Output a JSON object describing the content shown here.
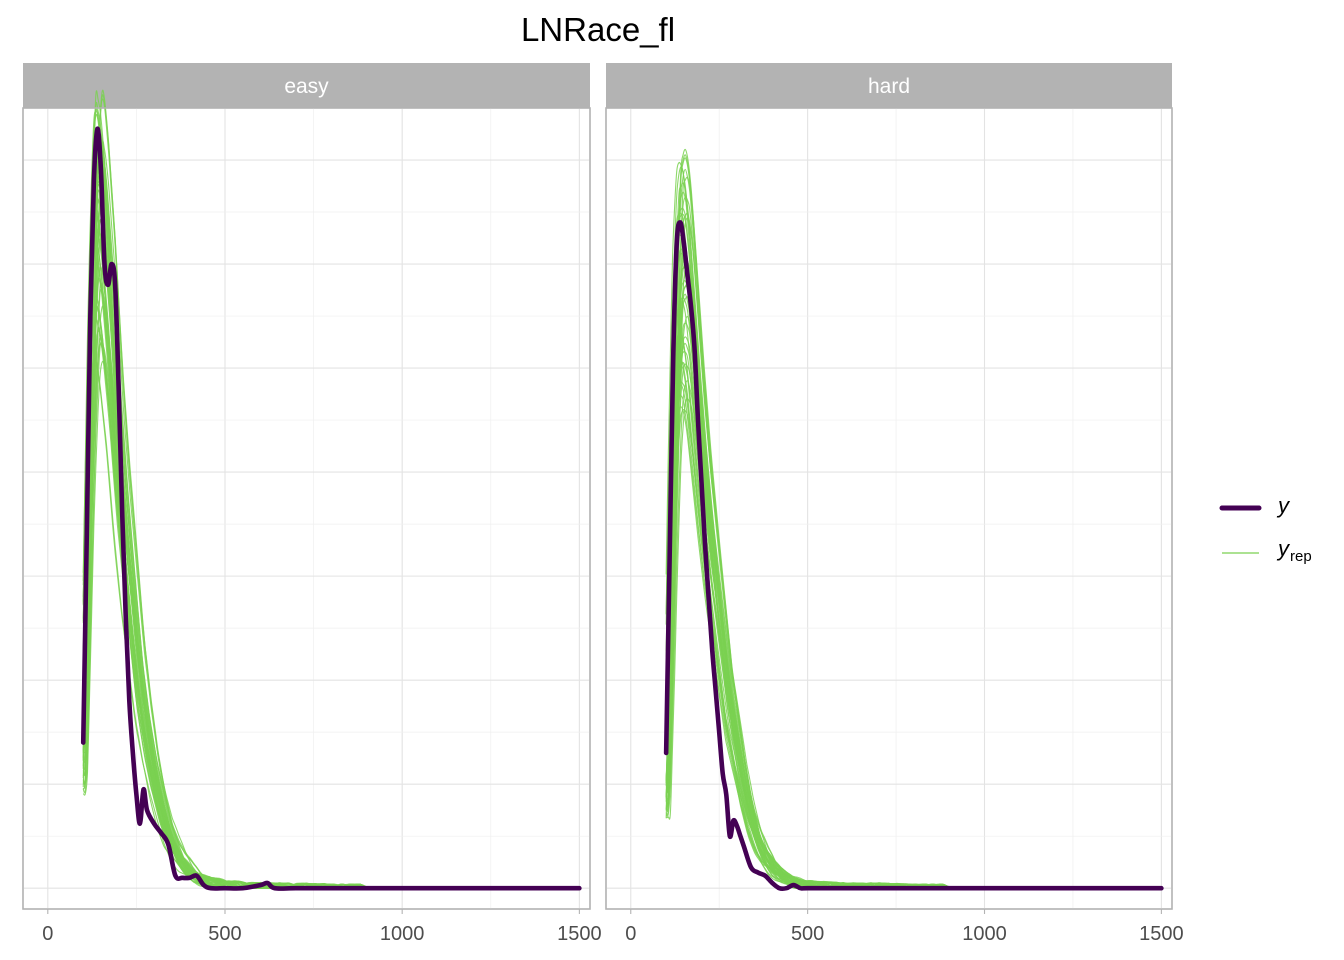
{
  "chart_data": {
    "type": "line",
    "title": "LNRace_fl",
    "xlabel": "",
    "ylabel": "",
    "xlim": [
      -70,
      1530
    ],
    "ylim": [
      -0.0002,
      0.0075
    ],
    "x_ticks": [
      0,
      500,
      1000,
      1500
    ],
    "x_tick_labels": [
      "0",
      "500",
      "1000",
      "1500"
    ],
    "y_tick_labels_shown": false,
    "grid": true,
    "legend": {
      "position": "right",
      "entries": [
        {
          "key": "y",
          "label": "y",
          "subscript": "",
          "color": "#440154",
          "style": "thick"
        },
        {
          "key": "yrep",
          "label": "y",
          "subscript": "rep",
          "color": "#7ad151",
          "style": "thin"
        }
      ]
    },
    "facets": [
      {
        "label": "easy",
        "y": {
          "x": [
            100,
            110,
            120,
            130,
            140,
            150,
            160,
            170,
            180,
            190,
            200,
            210,
            220,
            230,
            240,
            250,
            260,
            270,
            280,
            300,
            320,
            340,
            360,
            380,
            400,
            420,
            440,
            460,
            500,
            550,
            600,
            620,
            640,
            700,
            800,
            1000,
            1200,
            1500
          ],
          "y": [
            0.0014,
            0.0034,
            0.0055,
            0.0068,
            0.0073,
            0.0069,
            0.006,
            0.0058,
            0.006,
            0.0058,
            0.0048,
            0.0036,
            0.0026,
            0.0018,
            0.0013,
            0.0009,
            0.00062,
            0.00095,
            0.00075,
            0.00062,
            0.00053,
            0.00042,
            0.00012,
            0.0001,
            0.0001,
            0.00012,
            3e-05,
            0.0,
            0.0,
            0.0,
            3e-05,
            5e-05,
            0.0,
            0.0,
            0.0,
            0.0,
            0.0,
            0.0
          ]
        },
        "yrep": {
          "n_draws": 50,
          "x": [
            100,
            110,
            120,
            130,
            140,
            150,
            160,
            170,
            180,
            190,
            200,
            220,
            240,
            260,
            280,
            300,
            320,
            340,
            360,
            380,
            400,
            420,
            440,
            460,
            480,
            500,
            550,
            600,
            650,
            700,
            800,
            900,
            1000,
            1200,
            1500
          ],
          "y": [
            0.0012,
            0.0028,
            0.0045,
            0.0057,
            0.0064,
            0.0063,
            0.006,
            0.0056,
            0.0052,
            0.0047,
            0.0042,
            0.0034,
            0.0027,
            0.002,
            0.0015,
            0.0011,
            0.0008,
            0.00055,
            0.00038,
            0.00025,
            0.00017,
            0.00011,
            8e-05,
            6e-05,
            4e-05,
            3e-05,
            2e-05,
            1e-05,
            1e-05,
            1e-05,
            0.0,
            0.0,
            0.0,
            0.0,
            0.0
          ]
        }
      },
      {
        "label": "hard",
        "y": {
          "x": [
            100,
            110,
            120,
            130,
            140,
            150,
            160,
            170,
            180,
            190,
            200,
            210,
            220,
            230,
            240,
            250,
            260,
            270,
            280,
            290,
            300,
            310,
            320,
            340,
            360,
            380,
            400,
            420,
            440,
            460,
            480,
            500,
            600,
            800,
            1000,
            1200,
            1500
          ],
          "y": [
            0.0013,
            0.0032,
            0.0051,
            0.0062,
            0.0064,
            0.0062,
            0.0059,
            0.0056,
            0.0052,
            0.0045,
            0.0039,
            0.0033,
            0.0028,
            0.0023,
            0.0019,
            0.0015,
            0.0011,
            0.0009,
            0.0005,
            0.00065,
            0.0006,
            0.0005,
            0.0004,
            0.0002,
            0.00015,
            0.00012,
            5e-05,
            0.0,
            0.0,
            3e-05,
            0.0,
            0.0,
            0.0,
            0.0,
            0.0,
            0.0,
            0.0
          ]
        },
        "yrep": {
          "n_draws": 50,
          "x": [
            100,
            110,
            120,
            130,
            140,
            150,
            160,
            170,
            180,
            190,
            200,
            220,
            240,
            260,
            280,
            300,
            320,
            340,
            360,
            380,
            400,
            420,
            440,
            460,
            480,
            500,
            550,
            600,
            650,
            700,
            800,
            900,
            1000,
            1200,
            1500
          ],
          "y": [
            0.0009,
            0.0022,
            0.0038,
            0.0051,
            0.0058,
            0.0059,
            0.0058,
            0.0055,
            0.0051,
            0.0047,
            0.0043,
            0.0036,
            0.003,
            0.0024,
            0.0018,
            0.0014,
            0.001,
            0.0007,
            0.00048,
            0.00032,
            0.00021,
            0.00014,
            9e-05,
            6e-05,
            4e-05,
            3e-05,
            2e-05,
            1e-05,
            1e-05,
            1e-05,
            0.0,
            0.0,
            0.0,
            0.0,
            0.0
          ]
        }
      }
    ]
  }
}
